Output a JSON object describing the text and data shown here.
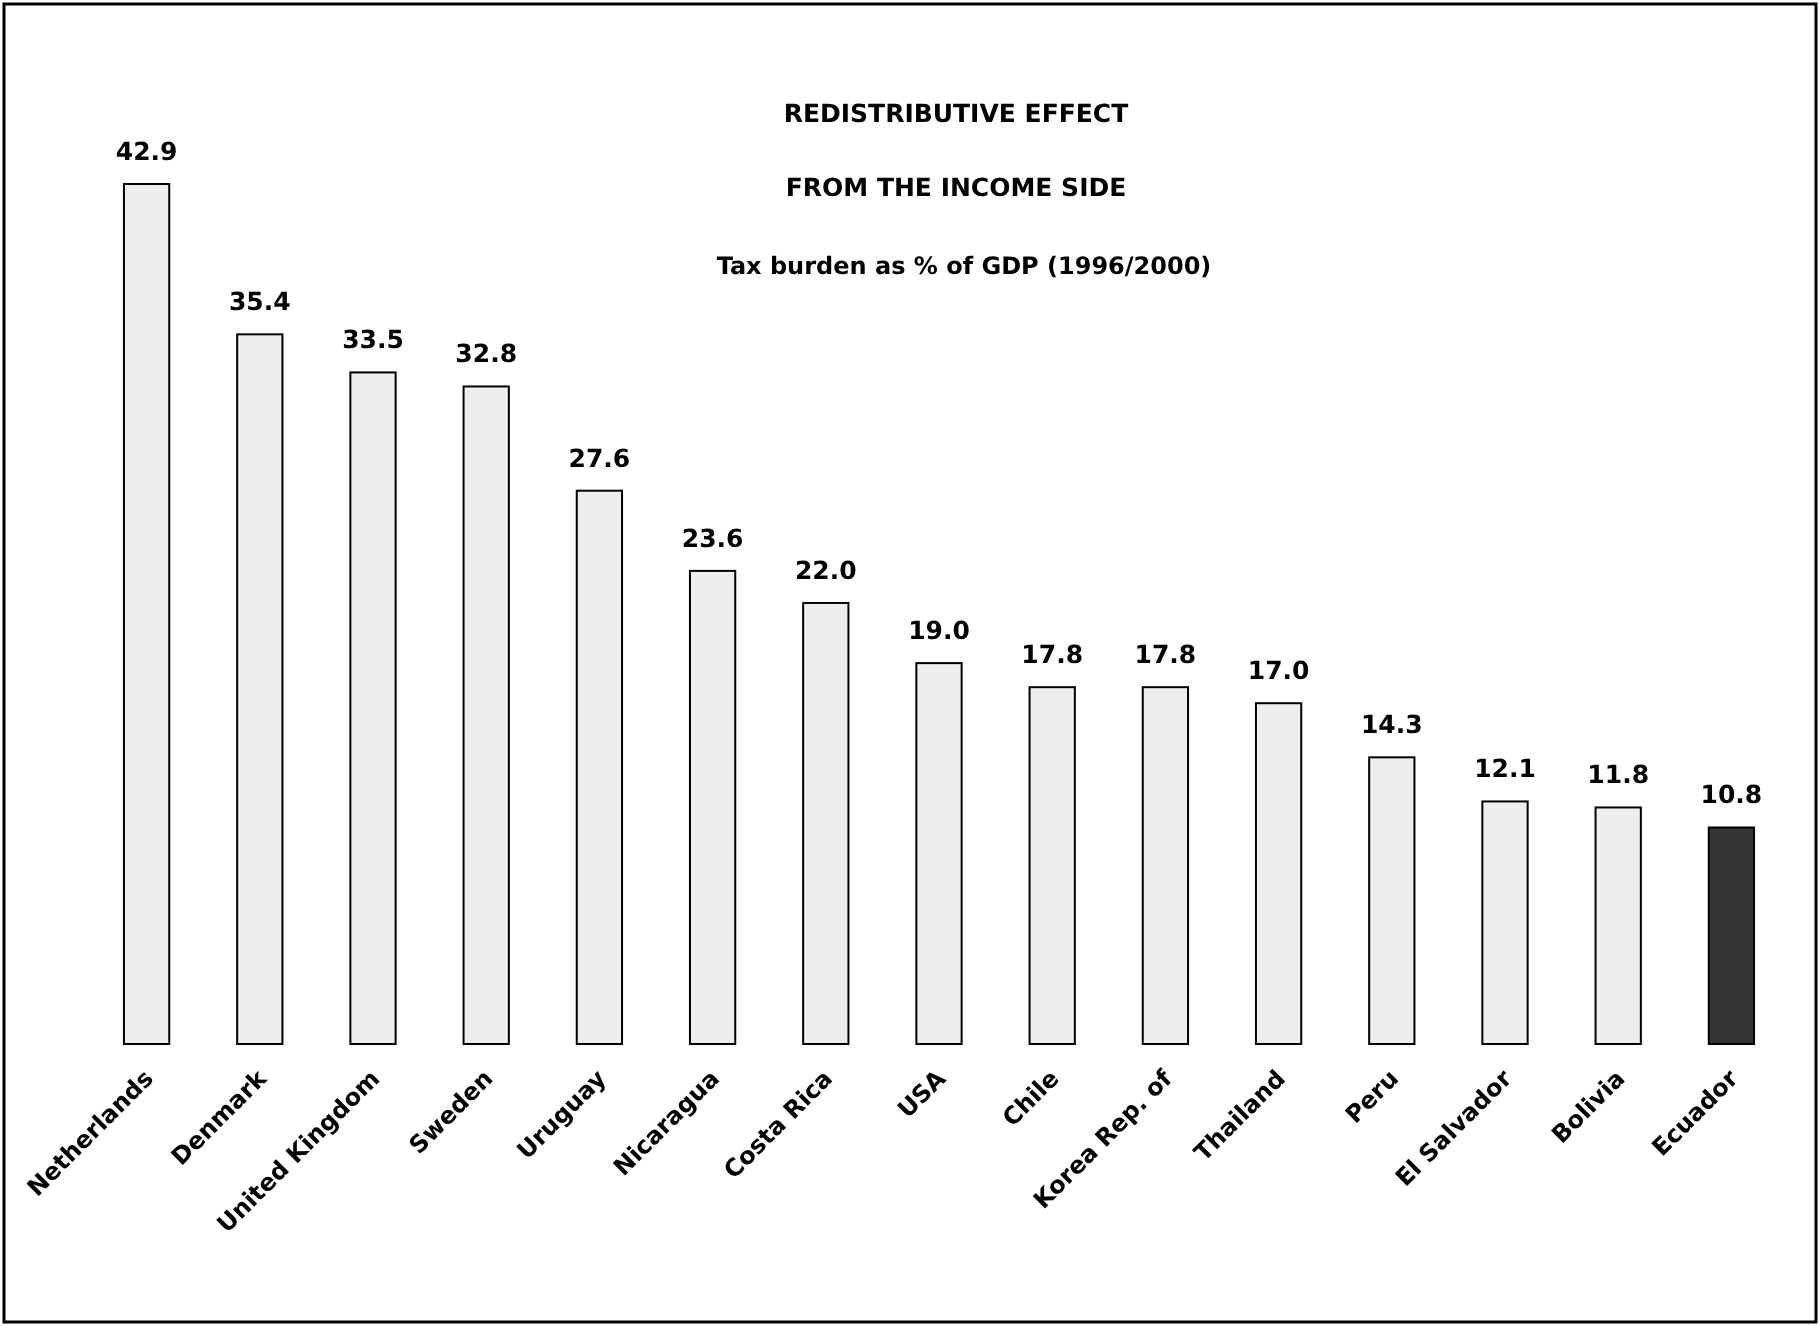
{
  "chart_data": {
    "type": "bar",
    "title": "REDISTRIBUTIVE EFFECT",
    "subtitle": "FROM THE INCOME SIDE",
    "annotations": [
      "Tax burden as % of GDP (1996/2000)"
    ],
    "categories": [
      "Netherlands",
      "Denmark",
      "United Kingdom",
      "Sweden",
      "Uruguay",
      "Nicaragua",
      "Costa Rica",
      "USA",
      "Chile",
      "Korea Rep. of",
      "Thailand",
      "Peru",
      "El Salvador",
      "Bolivia",
      "Ecuador"
    ],
    "values": [
      42.9,
      35.4,
      33.5,
      32.8,
      27.6,
      23.6,
      22.0,
      19.0,
      17.8,
      17.8,
      17.0,
      14.3,
      12.1,
      11.8,
      10.8
    ],
    "colors": [
      "#eeeeee",
      "#eeeeee",
      "#eeeeee",
      "#eeeeee",
      "#eeeeee",
      "#eeeeee",
      "#eeeeee",
      "#eeeeee",
      "#eeeeee",
      "#eeeeee",
      "#eeeeee",
      "#eeeeee",
      "#eeeeee",
      "#eeeeee",
      "#333333"
    ],
    "value_labels": [
      "42.9",
      "35.4",
      "33.5",
      "32.8",
      "27.6",
      "23.6",
      "22.0",
      "19.0",
      "17.8",
      "17.8",
      "17.0",
      "14.3",
      "12.1",
      "11.8",
      "10.8"
    ]
  }
}
